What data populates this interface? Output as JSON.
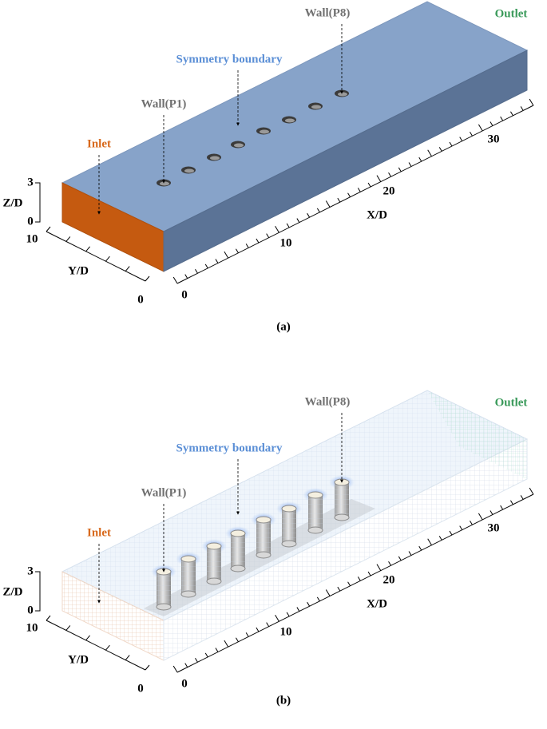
{
  "panels": [
    {
      "caption": "(a)",
      "labels": {
        "outlet": "Outlet",
        "symmetry": "Symmetry boundary",
        "wall_p8": "Wall(P8)",
        "wall_p1": "Wall(P1)",
        "inlet": "Inlet"
      },
      "axes": {
        "z_label": "Z/D",
        "z_ticks": [
          0,
          3
        ],
        "y_label": "Y/D",
        "y_ticks": [
          0,
          10
        ],
        "x_label": "X/D",
        "x_ticks": [
          0,
          10,
          20,
          30
        ]
      }
    },
    {
      "caption": "(b)",
      "labels": {
        "outlet": "Outlet",
        "symmetry": "Symmetry boundary",
        "wall_p8": "Wall(P8)",
        "wall_p1": "Wall(P1)",
        "inlet": "Inlet"
      },
      "axes": {
        "z_label": "Z/D",
        "z_ticks": [
          0,
          3
        ],
        "y_label": "Y/D",
        "y_ticks": [
          0,
          10
        ],
        "x_label": "X/D",
        "x_ticks": [
          0,
          10,
          20,
          30
        ]
      }
    }
  ]
}
